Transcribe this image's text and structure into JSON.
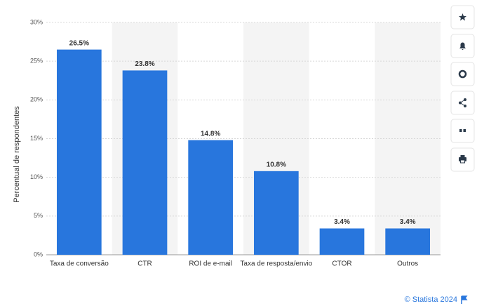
{
  "chart_data": {
    "type": "bar",
    "y_label": "Percentual de respondentes",
    "categories": [
      "Taxa de conversão",
      "CTR",
      "ROI de e-mail",
      "Taxa de resposta/envio",
      "CTOR",
      "Outros"
    ],
    "values": [
      26.5,
      23.8,
      14.8,
      10.8,
      3.4,
      3.4
    ],
    "value_labels": [
      "26.5%",
      "23.8%",
      "14.8%",
      "10.8%",
      "3.4%",
      "3.4%"
    ],
    "color": "#2876dd",
    "ylim": [
      0,
      30
    ],
    "yticks": [
      {
        "value": 0,
        "label": "0%"
      },
      {
        "value": 5,
        "label": "5%"
      },
      {
        "value": 10,
        "label": "10%"
      },
      {
        "value": 15,
        "label": "15%"
      },
      {
        "value": 20,
        "label": "20%"
      },
      {
        "value": 25,
        "label": "25%"
      },
      {
        "value": 30,
        "label": "30%"
      }
    ],
    "grid": true
  },
  "footer": "© Statista 2024"
}
